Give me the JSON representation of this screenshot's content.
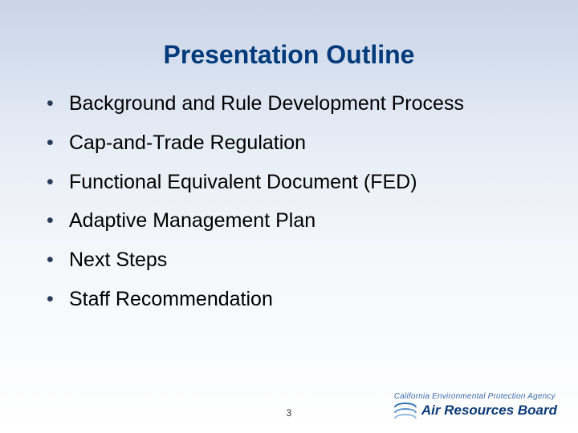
{
  "colors": {
    "title": "#003a7a",
    "body": "#000000",
    "bullet": "#2a3b5a",
    "agencyText": "#3a6aa8",
    "arbText": "#0a3a7a",
    "arc1": "#2c6fb5",
    "arc2": "#5a93ca",
    "arc3": "#8fb8dc"
  },
  "typography": {
    "titleSize": 32,
    "bodySize": 25,
    "arbSize": 17
  },
  "title": "Presentation Outline",
  "bullets": [
    "Background and Rule Development Process",
    "Cap-and-Trade Regulation",
    "Functional Equivalent Document (FED)",
    "Adaptive Management Plan",
    "Next Steps",
    "Staff Recommendation"
  ],
  "pageNumber": "3",
  "footer": {
    "agency": "California Environmental Protection Agency",
    "board": "Air Resources Board"
  }
}
